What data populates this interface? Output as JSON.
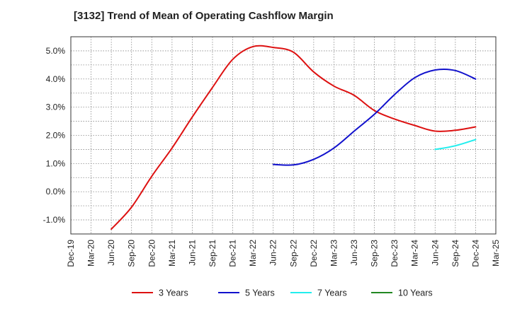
{
  "chart_data": {
    "type": "line",
    "title": "[3132]  Trend of Mean of Operating Cashflow Margin",
    "xlabel": "",
    "ylabel": "",
    "ylim": [
      -1.5,
      5.5
    ],
    "y_ticks": [
      -1.0,
      0.0,
      1.0,
      2.0,
      3.0,
      4.0,
      5.0
    ],
    "y_tick_labels": [
      "-1.0%",
      "0.0%",
      "1.0%",
      "2.0%",
      "3.0%",
      "4.0%",
      "5.0%"
    ],
    "x_ticks": [
      "Dec-19",
      "Mar-20",
      "Jun-20",
      "Sep-20",
      "Dec-20",
      "Mar-21",
      "Jun-21",
      "Sep-21",
      "Dec-21",
      "Mar-22",
      "Jun-22",
      "Sep-22",
      "Dec-22",
      "Mar-23",
      "Jun-23",
      "Sep-23",
      "Dec-23",
      "Mar-24",
      "Jun-24",
      "Sep-24",
      "Dec-24",
      "Mar-25"
    ],
    "grid": true,
    "legend_position": "bottom",
    "series": [
      {
        "name": "3 Years",
        "color": "#dd1111",
        "x": [
          "Jun-20",
          "Sep-20",
          "Dec-20",
          "Mar-21",
          "Jun-21",
          "Sep-21",
          "Dec-21",
          "Mar-22",
          "Jun-22",
          "Sep-22",
          "Dec-22",
          "Mar-23",
          "Jun-23",
          "Sep-23",
          "Dec-23",
          "Mar-24",
          "Jun-24",
          "Sep-24",
          "Dec-24"
        ],
        "values": [
          -1.33,
          -0.55,
          0.55,
          1.55,
          2.65,
          3.7,
          4.7,
          5.15,
          5.12,
          4.95,
          4.25,
          3.75,
          3.42,
          2.88,
          2.58,
          2.35,
          2.15,
          2.18,
          2.3
        ]
      },
      {
        "name": "5 Years",
        "color": "#1111cc",
        "x": [
          "Jun-22",
          "Sep-22",
          "Dec-22",
          "Mar-23",
          "Jun-23",
          "Sep-23",
          "Dec-23",
          "Mar-24",
          "Jun-24",
          "Sep-24",
          "Dec-24"
        ],
        "values": [
          0.97,
          0.95,
          1.15,
          1.55,
          2.15,
          2.75,
          3.45,
          4.05,
          4.32,
          4.3,
          4.0
        ]
      },
      {
        "name": "7 Years",
        "color": "#22eeee",
        "x": [
          "Jun-24",
          "Sep-24",
          "Dec-24"
        ],
        "values": [
          1.5,
          1.63,
          1.85
        ]
      },
      {
        "name": "10 Years",
        "color": "#228822",
        "x": [],
        "values": []
      }
    ]
  }
}
